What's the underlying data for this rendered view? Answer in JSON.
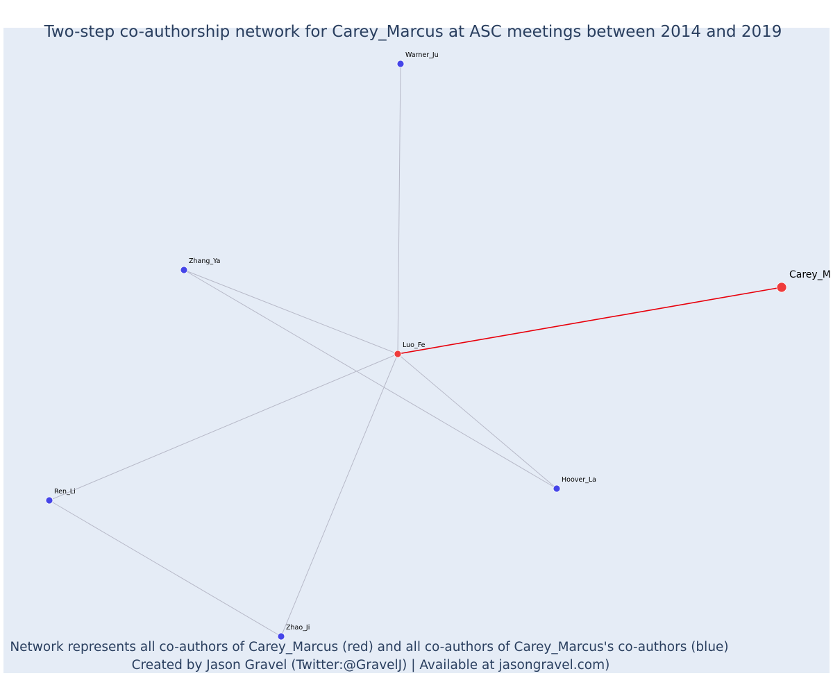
{
  "title": "Two-step co-authorship network for Carey_Marcus at ASC meetings between 2014 and 2019",
  "caption": {
    "line1": "Network represents all co-authors of Carey_Marcus (red) and all co-authors of Carey_Marcus's co-authors (blue)",
    "line2": "Created by Jason Gravel (Twitter:@GravelJ) | Available at jasongravel.com)"
  },
  "colors": {
    "background": "#e5ecf6",
    "title": "#2a3f5f",
    "first_degree": "#ef3b3b",
    "second_degree": "#4545e8",
    "ego_edge": "#e8000b",
    "other_edge": "#b7b9c8"
  },
  "network": {
    "ego": "Carey_Marcus",
    "nodes": [
      {
        "id": "Carey_Marcus",
        "label": "Carey_M",
        "group": "ego"
      },
      {
        "id": "Luo_Fe",
        "label": "Luo_Fe",
        "group": "coauthor"
      },
      {
        "id": "Warner_Ju",
        "label": "Warner_Ju",
        "group": "second_degree"
      },
      {
        "id": "Zhang_Ya",
        "label": "Zhang_Ya",
        "group": "second_degree"
      },
      {
        "id": "Hoover_La",
        "label": "Hoover_La",
        "group": "second_degree"
      },
      {
        "id": "Ren_Li",
        "label": "Ren_Li",
        "group": "second_degree"
      },
      {
        "id": "Zhao_Ji",
        "label": "Zhao_Ji",
        "group": "second_degree"
      }
    ],
    "edges": [
      {
        "source": "Carey_Marcus",
        "target": "Luo_Fe",
        "ego_edge": true
      },
      {
        "source": "Luo_Fe",
        "target": "Warner_Ju",
        "ego_edge": false
      },
      {
        "source": "Luo_Fe",
        "target": "Zhang_Ya",
        "ego_edge": false
      },
      {
        "source": "Luo_Fe",
        "target": "Hoover_La",
        "ego_edge": false
      },
      {
        "source": "Luo_Fe",
        "target": "Ren_Li",
        "ego_edge": false
      },
      {
        "source": "Luo_Fe",
        "target": "Zhao_Ji",
        "ego_edge": false
      },
      {
        "source": "Zhang_Ya",
        "target": "Hoover_La",
        "ego_edge": false
      },
      {
        "source": "Ren_Li",
        "target": "Zhao_Ji",
        "ego_edge": false
      }
    ]
  }
}
